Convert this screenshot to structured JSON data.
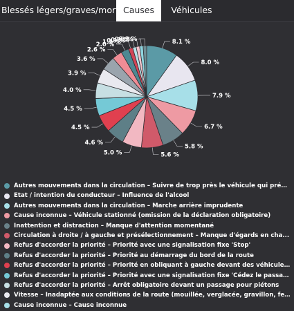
{
  "tabs": [
    {
      "label": "Blessés légers/graves/morts",
      "active": false
    },
    {
      "label": "Causes",
      "active": true
    },
    {
      "label": "Véhicules",
      "active": false
    }
  ],
  "chart_data": {
    "type": "pie",
    "title": "",
    "slices": [
      {
        "label": "8.1 %",
        "value": 8.1,
        "color": "#5b9aa6"
      },
      {
        "label": "8.0 %",
        "value": 8.0,
        "color": "#e8e6f0"
      },
      {
        "label": "7.9 %",
        "value": 7.9,
        "color": "#a7dfe8"
      },
      {
        "label": "6.7 %",
        "value": 6.7,
        "color": "#ee9aa3"
      },
      {
        "label": "5.8 %",
        "value": 5.8,
        "color": "#6a8189"
      },
      {
        "label": "5.6 %",
        "value": 5.6,
        "color": "#d05a6a"
      },
      {
        "label": "5.0 %",
        "value": 5.0,
        "color": "#f2b8c2"
      },
      {
        "label": "4.6 %",
        "value": 4.6,
        "color": "#5e7f87"
      },
      {
        "label": "4.5 %",
        "value": 4.5,
        "color": "#e0404f"
      },
      {
        "label": "4.5 %",
        "value": 4.5,
        "color": "#75c9d6"
      },
      {
        "label": "4.0 %",
        "value": 4.0,
        "color": "#c7dfe3"
      },
      {
        "label": "3.9 %",
        "value": 3.9,
        "color": "#e9e9ef"
      },
      {
        "label": "3.6 %",
        "value": 3.6,
        "color": "#9aa4ad"
      },
      {
        "label": "2.6 %",
        "value": 2.6,
        "color": "#f08c95"
      },
      {
        "label": "2.0 %",
        "value": 2.0,
        "color": "#4e8892"
      },
      {
        "label": "1.1 %",
        "value": 1.1,
        "color": "#d34556"
      },
      {
        "label": "0.9 %",
        "value": 0.9,
        "color": "#b9e1e7"
      },
      {
        "label": "0.9 %",
        "value": 0.9,
        "color": "#f4c3cb"
      },
      {
        "label": "0.9 %",
        "value": 0.9,
        "color": "#8fd4de"
      },
      {
        "label": "0.9 %",
        "value": 0.9,
        "color": "#6f8d94"
      }
    ]
  },
  "legend": [
    {
      "label": "Autres mouvements dans la circulation – Suivre de trop près le véhicule qui préc...",
      "color": "#5b9aa6"
    },
    {
      "label": "Etat / intention du conducteur – Influence de l'alcool",
      "color": "#e8e6f0"
    },
    {
      "label": "Autres mouvements dans la circulation – Marche arrière imprudente",
      "color": "#a7dfe8"
    },
    {
      "label": "Cause inconnue – Véhicule stationné (omission de la déclaration obligatoire)",
      "color": "#ee9aa3"
    },
    {
      "label": "Inattention et distraction – Manque d'attention momentané",
      "color": "#6a8189"
    },
    {
      "label": "Circulation à droite / à gauche et présélectionnement – Manque d'égards en cha...",
      "color": "#d05a6a"
    },
    {
      "label": "Refus d'accorder la priorité – Priorité avec une signalisation fixe 'Stop'",
      "color": "#f2b8c2"
    },
    {
      "label": "Refus d'accorder la priorité – Priorité au démarrage du bord de la route",
      "color": "#5e7f87"
    },
    {
      "label": "Refus d'accorder la priorité – Priorité en obliquant à gauche devant des véhicules...",
      "color": "#e0404f"
    },
    {
      "label": "Refus d'accorder la priorité – Priorité avec une signalisation fixe 'Cédez le passage'",
      "color": "#75c9d6"
    },
    {
      "label": "Refus d'accorder la priorité – Arrêt obligatoire devant un passage pour piétons",
      "color": "#c7dfe3"
    },
    {
      "label": "Vitesse – Inadaptée aux conditions de la route (mouillée, verglacée, gravillon, fe...",
      "color": "#e9e9ef"
    },
    {
      "label": "Cause inconnue – Cause inconnue",
      "color": "#a7dfe8"
    }
  ]
}
